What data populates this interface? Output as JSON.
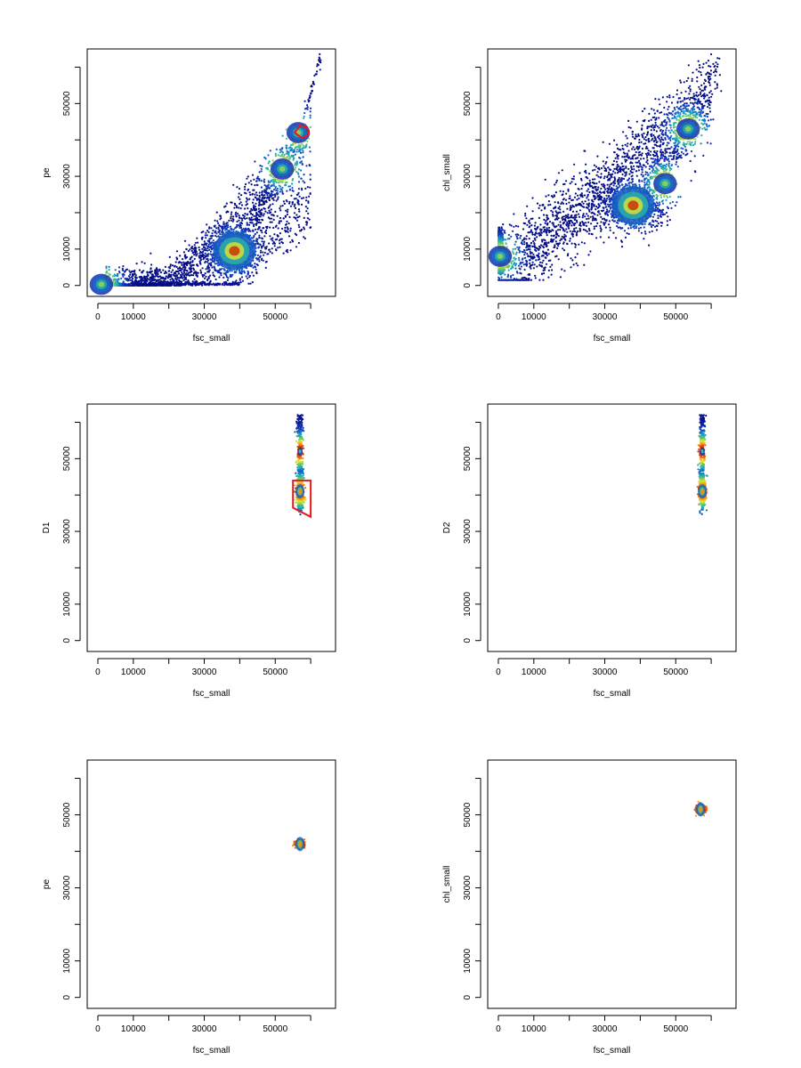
{
  "figure": {
    "layout": "3 rows x 2 columns scatter-density panels"
  },
  "chart_data": [
    {
      "type": "scatter",
      "style": "density (blue-to-red)",
      "xlabel": "fsc_small",
      "ylabel": "pe",
      "xlim": [
        -3000,
        67000
      ],
      "ylim": [
        -3000,
        65000
      ],
      "xticks": [
        0,
        10000,
        20000,
        30000,
        40000,
        50000,
        60000
      ],
      "xtick_labels": [
        "0",
        "10000",
        "",
        "30000",
        "",
        "50000",
        ""
      ],
      "yticks": [
        0,
        10000,
        20000,
        30000,
        40000,
        50000,
        60000
      ],
      "ytick_labels": [
        "0",
        "10000",
        "",
        "30000",
        "",
        "50000",
        ""
      ],
      "density_peaks": [
        [
          38500,
          9500
        ],
        [
          52000,
          32000
        ],
        [
          56500,
          42000
        ],
        [
          1000,
          300
        ]
      ],
      "gate": {
        "color": "#e41a1c",
        "vertices": [
          [
            55500,
            42000
          ],
          [
            57000,
            44000
          ],
          [
            59000,
            43500
          ],
          [
            59500,
            41500
          ],
          [
            57500,
            40500
          ]
        ]
      }
    },
    {
      "type": "scatter",
      "style": "density (blue-to-red)",
      "xlabel": "fsc_small",
      "ylabel": "chl_small",
      "xlim": [
        -3000,
        67000
      ],
      "ylim": [
        -3000,
        65000
      ],
      "xticks": [
        0,
        10000,
        20000,
        30000,
        40000,
        50000,
        60000
      ],
      "xtick_labels": [
        "0",
        "10000",
        "",
        "30000",
        "",
        "50000",
        ""
      ],
      "yticks": [
        0,
        10000,
        20000,
        30000,
        40000,
        50000,
        60000
      ],
      "ytick_labels": [
        "0",
        "10000",
        "",
        "30000",
        "",
        "50000",
        ""
      ],
      "density_peaks": [
        [
          38000,
          22000
        ],
        [
          47000,
          28000
        ],
        [
          53500,
          43000
        ],
        [
          500,
          8000
        ]
      ],
      "gate": null
    },
    {
      "type": "scatter",
      "style": "density (blue-to-red)",
      "xlabel": "fsc_small",
      "ylabel": "D1",
      "xlim": [
        -3000,
        67000
      ],
      "ylim": [
        -3000,
        65000
      ],
      "xticks": [
        0,
        10000,
        20000,
        30000,
        40000,
        50000,
        60000
      ],
      "xtick_labels": [
        "0",
        "10000",
        "",
        "30000",
        "",
        "50000",
        ""
      ],
      "yticks": [
        0,
        10000,
        20000,
        30000,
        40000,
        50000,
        60000
      ],
      "ytick_labels": [
        "0",
        "10000",
        "",
        "30000",
        "",
        "50000",
        ""
      ],
      "density_peaks": [
        [
          57000,
          41000
        ],
        [
          57000,
          52000
        ]
      ],
      "gate": {
        "color": "#e41a1c",
        "vertices": [
          [
            55000,
            44000
          ],
          [
            60000,
            44000
          ],
          [
            60000,
            34000
          ],
          [
            55000,
            36500
          ]
        ]
      }
    },
    {
      "type": "scatter",
      "style": "density (blue-to-red)",
      "xlabel": "fsc_small",
      "ylabel": "D2",
      "xlim": [
        -3000,
        67000
      ],
      "ylim": [
        -3000,
        65000
      ],
      "xticks": [
        0,
        10000,
        20000,
        30000,
        40000,
        50000,
        60000
      ],
      "xtick_labels": [
        "0",
        "10000",
        "",
        "30000",
        "",
        "50000",
        ""
      ],
      "yticks": [
        0,
        10000,
        20000,
        30000,
        40000,
        50000,
        60000
      ],
      "ytick_labels": [
        "0",
        "10000",
        "",
        "30000",
        "",
        "50000",
        ""
      ],
      "density_peaks": [
        [
          57500,
          41000
        ],
        [
          57500,
          52000
        ]
      ],
      "gate": null
    },
    {
      "type": "scatter",
      "style": "density (blue-to-red)",
      "xlabel": "fsc_small",
      "ylabel": "pe",
      "xlim": [
        -3000,
        67000
      ],
      "ylim": [
        -3000,
        65000
      ],
      "xticks": [
        0,
        10000,
        20000,
        30000,
        40000,
        50000,
        60000
      ],
      "xtick_labels": [
        "0",
        "10000",
        "",
        "30000",
        "",
        "50000",
        ""
      ],
      "yticks": [
        0,
        10000,
        20000,
        30000,
        40000,
        50000,
        60000
      ],
      "ytick_labels": [
        "0",
        "10000",
        "",
        "30000",
        "",
        "50000",
        ""
      ],
      "density_peaks": [
        [
          57000,
          42000
        ]
      ],
      "gate": null
    },
    {
      "type": "scatter",
      "style": "density (blue-to-red)",
      "xlabel": "fsc_small",
      "ylabel": "chl_small",
      "xlim": [
        -3000,
        67000
      ],
      "ylim": [
        -3000,
        65000
      ],
      "xticks": [
        0,
        10000,
        20000,
        30000,
        40000,
        50000,
        60000
      ],
      "xtick_labels": [
        "0",
        "10000",
        "",
        "30000",
        "",
        "50000",
        ""
      ],
      "yticks": [
        0,
        10000,
        20000,
        30000,
        40000,
        50000,
        60000
      ],
      "ytick_labels": [
        "0",
        "10000",
        "",
        "30000",
        "",
        "50000",
        ""
      ],
      "density_peaks": [
        [
          57000,
          51500
        ]
      ],
      "gate": null
    }
  ]
}
